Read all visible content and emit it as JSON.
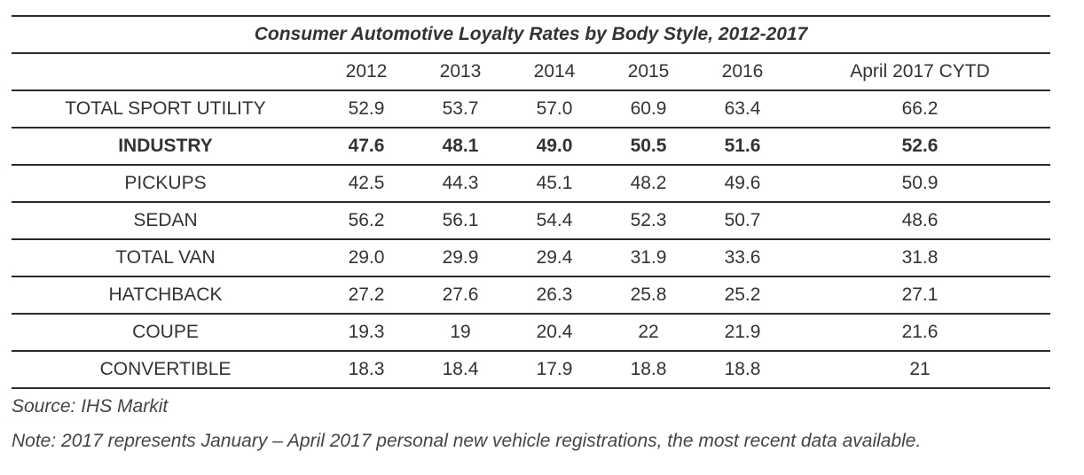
{
  "chart_data": {
    "type": "table",
    "title": "Consumer Automotive Loyalty Rates by Body Style, 2012-2017",
    "columns": [
      "",
      "2012",
      "2013",
      "2014",
      "2015",
      "2016",
      "April 2017 CYTD"
    ],
    "rows": [
      {
        "label": "TOTAL SPORT UTILITY",
        "values": [
          "52.9",
          "53.7",
          "57.0",
          "60.9",
          "63.4",
          "66.2"
        ],
        "bold": false
      },
      {
        "label": "INDUSTRY",
        "values": [
          "47.6",
          "48.1",
          "49.0",
          "50.5",
          "51.6",
          "52.6"
        ],
        "bold": true
      },
      {
        "label": "PICKUPS",
        "values": [
          "42.5",
          "44.3",
          "45.1",
          "48.2",
          "49.6",
          "50.9"
        ],
        "bold": false
      },
      {
        "label": "SEDAN",
        "values": [
          "56.2",
          "56.1",
          "54.4",
          "52.3",
          "50.7",
          "48.6"
        ],
        "bold": false
      },
      {
        "label": "TOTAL VAN",
        "values": [
          "29.0",
          "29.9",
          "29.4",
          "31.9",
          "33.6",
          "31.8"
        ],
        "bold": false
      },
      {
        "label": "HATCHBACK",
        "values": [
          "27.2",
          "27.6",
          "26.3",
          "25.8",
          "25.2",
          "27.1"
        ],
        "bold": false
      },
      {
        "label": "COUPE",
        "values": [
          "19.3",
          "19",
          "20.4",
          "22",
          "21.9",
          "21.6"
        ],
        "bold": false
      },
      {
        "label": "CONVERTIBLE",
        "values": [
          "18.3",
          "18.4",
          "17.9",
          "18.8",
          "18.8",
          "21"
        ],
        "bold": false
      }
    ]
  },
  "footer": {
    "source": "Source: IHS Markit",
    "note": "Note: 2017 represents January – April 2017 personal new vehicle registrations, the most recent data available."
  }
}
